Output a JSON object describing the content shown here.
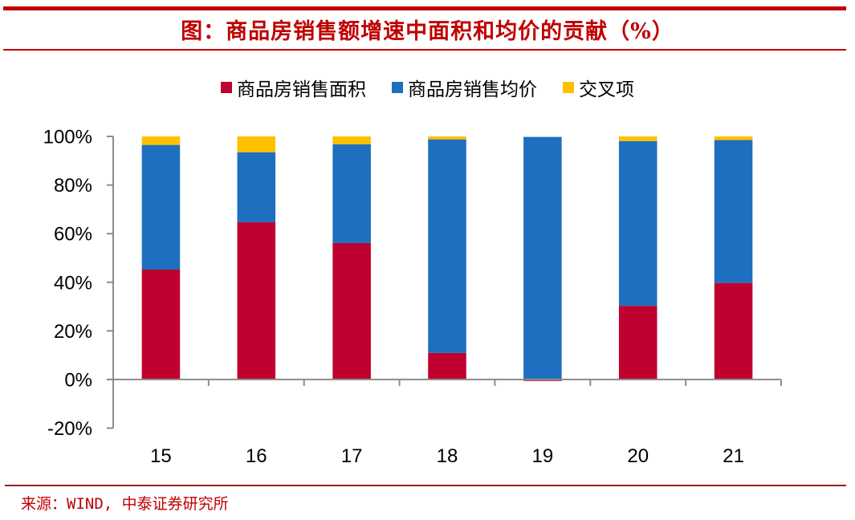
{
  "header": {
    "title": "图：商品房销售额增速中面积和均价的贡献（%）"
  },
  "footer": {
    "source": "来源：WIND, 中泰证券研究所"
  },
  "colors": {
    "brand_red": "#c00000",
    "area": "#c0002e",
    "price": "#1e6fbf",
    "cross": "#ffc000",
    "axis": "#8c8c8c"
  },
  "chart_data": {
    "type": "bar",
    "stacked": true,
    "title": "图：商品房销售额增速中面积和均价的贡献（%）",
    "xlabel": "",
    "ylabel": "",
    "categories": [
      "15",
      "16",
      "17",
      "18",
      "19",
      "20",
      "21"
    ],
    "series": [
      {
        "name": "商品房销售面积",
        "color": "#c0002e",
        "values": [
          45.2,
          64.7,
          56.1,
          10.9,
          -0.6,
          30.3,
          39.7
        ]
      },
      {
        "name": "商品房销售均价",
        "color": "#1e6fbf",
        "values": [
          51.3,
          28.8,
          40.7,
          87.9,
          99.8,
          67.8,
          58.8
        ]
      },
      {
        "name": "交叉项",
        "color": "#ffc000",
        "values": [
          3.5,
          6.5,
          3.2,
          1.2,
          0.0,
          1.9,
          1.5
        ]
      }
    ],
    "ylim": [
      -20,
      100
    ],
    "yticks": [
      100,
      80,
      60,
      40,
      20,
      0,
      -20
    ],
    "ytick_labels": [
      "100%",
      "80%",
      "60%",
      "40%",
      "20%",
      "0%",
      "-20%"
    ],
    "grid": false,
    "legend_position": "top-center",
    "source": "来源：WIND, 中泰证券研究所"
  }
}
